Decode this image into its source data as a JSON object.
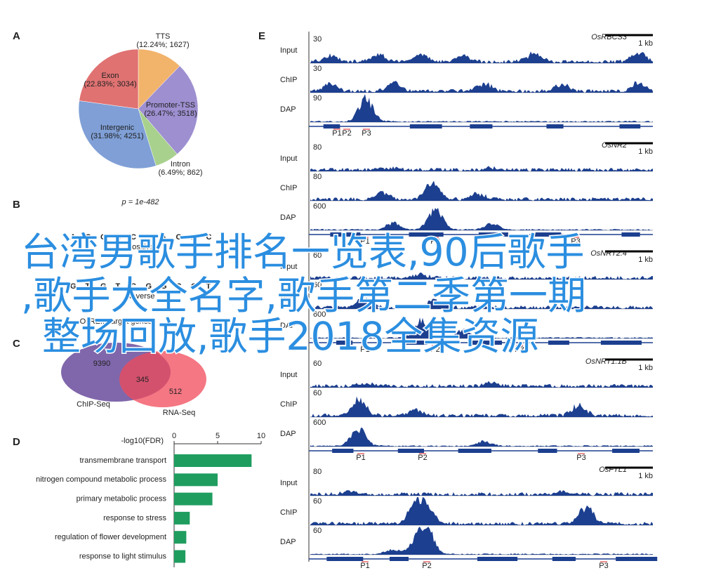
{
  "chart_data": [
    {
      "type": "pie",
      "panel": "A",
      "categories": [
        "TTS",
        "Promoter-TSS",
        "Intron",
        "Intergenic",
        "Exon"
      ],
      "values": [
        12.24,
        26.47,
        6.49,
        31.98,
        22.83
      ],
      "value_labels": [
        "(12.24%; 1627)",
        "(26.47%; 3518)",
        "(6.49%; 862)",
        "(31.98%; 4251)",
        "(22.83%; 3034)"
      ],
      "colors": [
        "#f2b36b",
        "#9d8fd0",
        "#a9d18e",
        "#7f9fd6",
        "#e07272"
      ]
    },
    {
      "type": "barh",
      "panel": "D",
      "xlabel": "-log10(FDR)",
      "categories": [
        "transmembrane transport",
        "nitrogen compound metabolic process",
        "primary metabolic process",
        "response to stress",
        "regulation of flower development",
        "response to light stimulus"
      ],
      "values": [
        8.9,
        5.0,
        4.4,
        1.8,
        1.4,
        1.3
      ],
      "xlim": [
        0,
        10
      ],
      "xticks": [
        0,
        5,
        10
      ],
      "color": "#1f9d5f"
    }
  ],
  "motif": {
    "panel": "B",
    "title": "p = 1e-482",
    "logos": [
      {
        "letters": [
          "A",
          "C",
          "G",
          "C",
          "C",
          "G",
          "A",
          "C",
          "A",
          "C"
        ],
        "caption": "Positive"
      },
      {
        "letters": [
          "G",
          "T",
          "G",
          "T",
          "C",
          "G",
          "G",
          "C",
          "G",
          "T"
        ],
        "caption": "Reverse"
      }
    ]
  },
  "venn": {
    "panel": "C",
    "title": "OsRE... target genes",
    "sets": [
      "ChIP-Seq",
      "RNA-Seq"
    ],
    "counts": [
      "9390",
      "345",
      "512"
    ]
  },
  "tracks": {
    "panel": "E",
    "scale": "1 kb",
    "promoters": [
      "P1",
      "P2",
      "P3"
    ],
    "genes": [
      {
        "name": "OsRBCS3",
        "tracks": [
          {
            "name": "Input",
            "max": "30"
          },
          {
            "name": "ChIP",
            "max": "30"
          },
          {
            "name": "DAP",
            "max": "90"
          }
        ]
      },
      {
        "name": "OsNR2",
        "tracks": [
          {
            "name": "Input",
            "max": "80"
          },
          {
            "name": "ChIP",
            "max": "80"
          },
          {
            "name": "DAP",
            "max": "600"
          }
        ]
      },
      {
        "name": "OsNRT2.4",
        "tracks": [
          {
            "name": "Input",
            "max": "60"
          },
          {
            "name": "ChIP",
            "max": "60"
          },
          {
            "name": "DAP",
            "max": "600"
          }
        ]
      },
      {
        "name": "OsNRT1.1B",
        "tracks": [
          {
            "name": "Input",
            "max": "60"
          },
          {
            "name": "ChIP",
            "max": "60"
          },
          {
            "name": "DAP",
            "max": "600"
          }
        ]
      },
      {
        "name": "OsFTL1",
        "tracks": [
          {
            "name": "Input",
            "max": "80"
          },
          {
            "name": "ChIP",
            "max": "60"
          },
          {
            "name": "DAP",
            "max": "60"
          }
        ]
      }
    ]
  },
  "overlay_text": [
    "台湾男歌手排名一览表,90后歌手",
    ",歌手大全名字,歌手第二季第一期",
    "整场回放,歌手2018全集资源"
  ]
}
